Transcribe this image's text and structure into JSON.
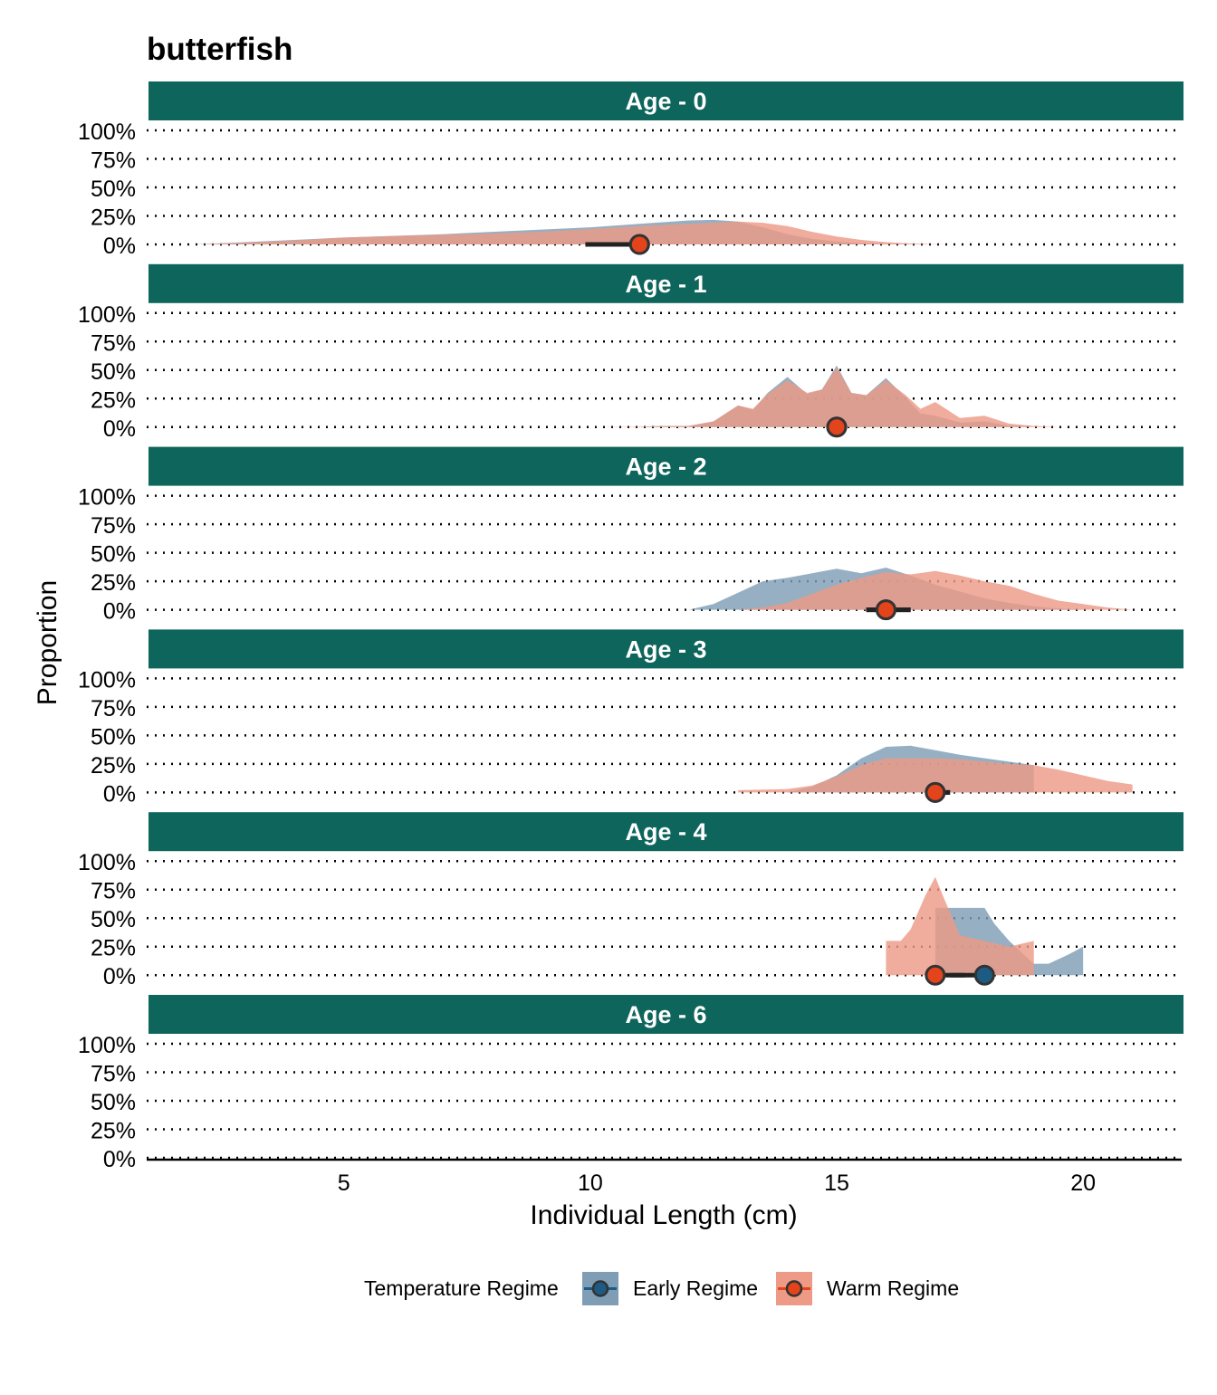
{
  "chart_data": {
    "type": "area",
    "title": "butterfish",
    "xlabel": "Individual Length (cm)",
    "ylabel": "Proportion",
    "xlim": [
      1,
      22
    ],
    "ylim": [
      0,
      1
    ],
    "x_ticks": [
      5,
      10,
      15,
      20
    ],
    "y_ticks": [
      "0%",
      "25%",
      "50%",
      "75%",
      "100%"
    ],
    "grid": "dotted horizontal",
    "legend": {
      "title": "Temperature Regime",
      "position": "bottom",
      "entries": [
        {
          "key": "early",
          "label": "Early Regime",
          "fill": "#7f9db5",
          "point": "#1d5a84"
        },
        {
          "key": "warm",
          "label": "Warm Regime",
          "fill": "#ed9a87",
          "point": "#e3441b"
        }
      ]
    },
    "facets": [
      {
        "label": "Age - 0",
        "series": [
          {
            "regime": "early",
            "x": [
              2,
              3,
              4,
              5,
              6,
              7,
              8,
              9,
              10,
              11,
              12,
              12.5,
              13,
              13.5,
              14,
              14.5,
              15,
              15.5,
              16,
              16.5,
              17
            ],
            "y": [
              0,
              0.02,
              0.04,
              0.06,
              0.075,
              0.09,
              0.11,
              0.13,
              0.15,
              0.18,
              0.21,
              0.215,
              0.2,
              0.15,
              0.09,
              0.05,
              0.025,
              0.01,
              0.004,
              0.001,
              0
            ]
          },
          {
            "regime": "warm",
            "x": [
              2,
              3,
              4,
              5,
              6,
              7,
              8,
              9,
              10,
              11,
              12,
              13,
              13.5,
              14,
              14.5,
              15,
              15.5,
              16,
              16.5,
              17,
              17.3
            ],
            "y": [
              0,
              0.015,
              0.035,
              0.06,
              0.075,
              0.085,
              0.095,
              0.11,
              0.135,
              0.16,
              0.18,
              0.2,
              0.19,
              0.16,
              0.11,
              0.07,
              0.04,
              0.02,
              0.008,
              0.002,
              0
            ]
          }
        ],
        "summary": [
          {
            "regime": "early",
            "median": 11,
            "q1": 10.4,
            "q3": 11
          },
          {
            "regime": "warm",
            "median": 11,
            "q1": 9.9,
            "q3": 11
          }
        ]
      },
      {
        "label": "Age - 1",
        "series": [
          {
            "regime": "early",
            "x": [
              11,
              11.5,
              12,
              12.5,
              13,
              13.3,
              13.6,
              14,
              14.4,
              14.7,
              15,
              15.3,
              15.6,
              16,
              16.4,
              16.7,
              17,
              17.5,
              18,
              18.5,
              19
            ],
            "y": [
              0,
              0.01,
              0.01,
              0.05,
              0.19,
              0.15,
              0.3,
              0.44,
              0.29,
              0.33,
              0.54,
              0.3,
              0.28,
              0.43,
              0.26,
              0.12,
              0.1,
              0.04,
              0.05,
              0.01,
              0
            ]
          },
          {
            "regime": "warm",
            "x": [
              10,
              11,
              11.5,
              12,
              12.5,
              13,
              13.3,
              13.6,
              14,
              14.4,
              14.7,
              15,
              15.3,
              15.6,
              16,
              16.4,
              16.7,
              17,
              17.5,
              18,
              18.5,
              19,
              19.5
            ],
            "y": [
              0,
              0.005,
              0.01,
              0.01,
              0.05,
              0.19,
              0.16,
              0.29,
              0.41,
              0.3,
              0.33,
              0.52,
              0.3,
              0.28,
              0.41,
              0.28,
              0.16,
              0.22,
              0.08,
              0.1,
              0.03,
              0.01,
              0
            ]
          }
        ],
        "summary": [
          {
            "regime": "early",
            "median": 15,
            "q1": 14.8,
            "q3": 15.2
          },
          {
            "regime": "warm",
            "median": 15,
            "q1": 14.8,
            "q3": 15.2
          }
        ]
      },
      {
        "label": "Age - 2",
        "series": [
          {
            "regime": "early",
            "x": [
              12,
              12.5,
              13,
              13.5,
              14,
              14.5,
              15,
              15.5,
              16,
              16.5,
              17,
              17.5,
              18,
              18.5,
              19,
              19.5,
              20
            ],
            "y": [
              0,
              0.05,
              0.15,
              0.25,
              0.28,
              0.32,
              0.36,
              0.32,
              0.37,
              0.3,
              0.22,
              0.16,
              0.1,
              0.06,
              0.03,
              0.01,
              0
            ]
          },
          {
            "regime": "warm",
            "x": [
              13,
              13.5,
              14,
              14.5,
              15,
              15.5,
              16,
              16.5,
              17,
              17.5,
              18,
              18.5,
              19,
              19.5,
              20,
              20.5,
              21
            ],
            "y": [
              0,
              0.02,
              0.06,
              0.14,
              0.22,
              0.28,
              0.33,
              0.31,
              0.34,
              0.3,
              0.25,
              0.21,
              0.14,
              0.08,
              0.05,
              0.02,
              0
            ]
          }
        ],
        "summary": [
          {
            "regime": "early",
            "median": 16,
            "q1": 15.6,
            "q3": 16.5
          },
          {
            "regime": "warm",
            "median": 16,
            "q1": 15.6,
            "q3": 16.5
          }
        ]
      },
      {
        "label": "Age - 3",
        "series": [
          {
            "regime": "early",
            "x": [
              14,
              14.5,
              15,
              15.5,
              16,
              16.5,
              17,
              17.5,
              18,
              18.5,
              19,
              19.001
            ],
            "y": [
              0,
              0.05,
              0.15,
              0.3,
              0.4,
              0.41,
              0.37,
              0.33,
              0.3,
              0.27,
              0.24,
              0
            ]
          },
          {
            "regime": "warm",
            "x": [
              13,
              13.5,
              14,
              14.5,
              15,
              15.5,
              16,
              16.5,
              17,
              17.5,
              18,
              18.5,
              19,
              19.5,
              20,
              20.5,
              21
            ],
            "y": [
              0.02,
              0.025,
              0.03,
              0.06,
              0.14,
              0.24,
              0.3,
              0.3,
              0.3,
              0.29,
              0.27,
              0.25,
              0.24,
              0.2,
              0.15,
              0.1,
              0.07
            ]
          }
        ],
        "summary": [
          {
            "regime": "early",
            "median": 17,
            "q1": 16.8,
            "q3": 17.3
          },
          {
            "regime": "warm",
            "median": 17,
            "q1": 16.8,
            "q3": 17.3
          }
        ]
      },
      {
        "label": "Age - 4",
        "series": [
          {
            "regime": "early",
            "x": [
              17,
              17.001,
              17.2,
              17.5,
              18,
              18.2,
              18.5,
              19,
              19.3,
              19.7,
              20,
              20.001
            ],
            "y": [
              0,
              0.59,
              0.59,
              0.59,
              0.59,
              0.45,
              0.3,
              0.1,
              0.1,
              0.18,
              0.25,
              0
            ]
          },
          {
            "regime": "warm",
            "x": [
              16,
              16.001,
              16.3,
              16.5,
              16.8,
              17,
              17.2,
              17.5,
              18,
              18.5,
              19,
              19.001
            ],
            "y": [
              0,
              0.3,
              0.3,
              0.4,
              0.7,
              0.86,
              0.65,
              0.35,
              0.3,
              0.25,
              0.3,
              0
            ]
          }
        ],
        "summary": [
          {
            "regime": "early",
            "median": 18,
            "q1": 17.3,
            "q3": 18
          },
          {
            "regime": "warm",
            "median": 17,
            "q1": 17,
            "q3": 17.6
          }
        ]
      },
      {
        "label": "Age - 6",
        "series": [],
        "summary": []
      }
    ]
  }
}
